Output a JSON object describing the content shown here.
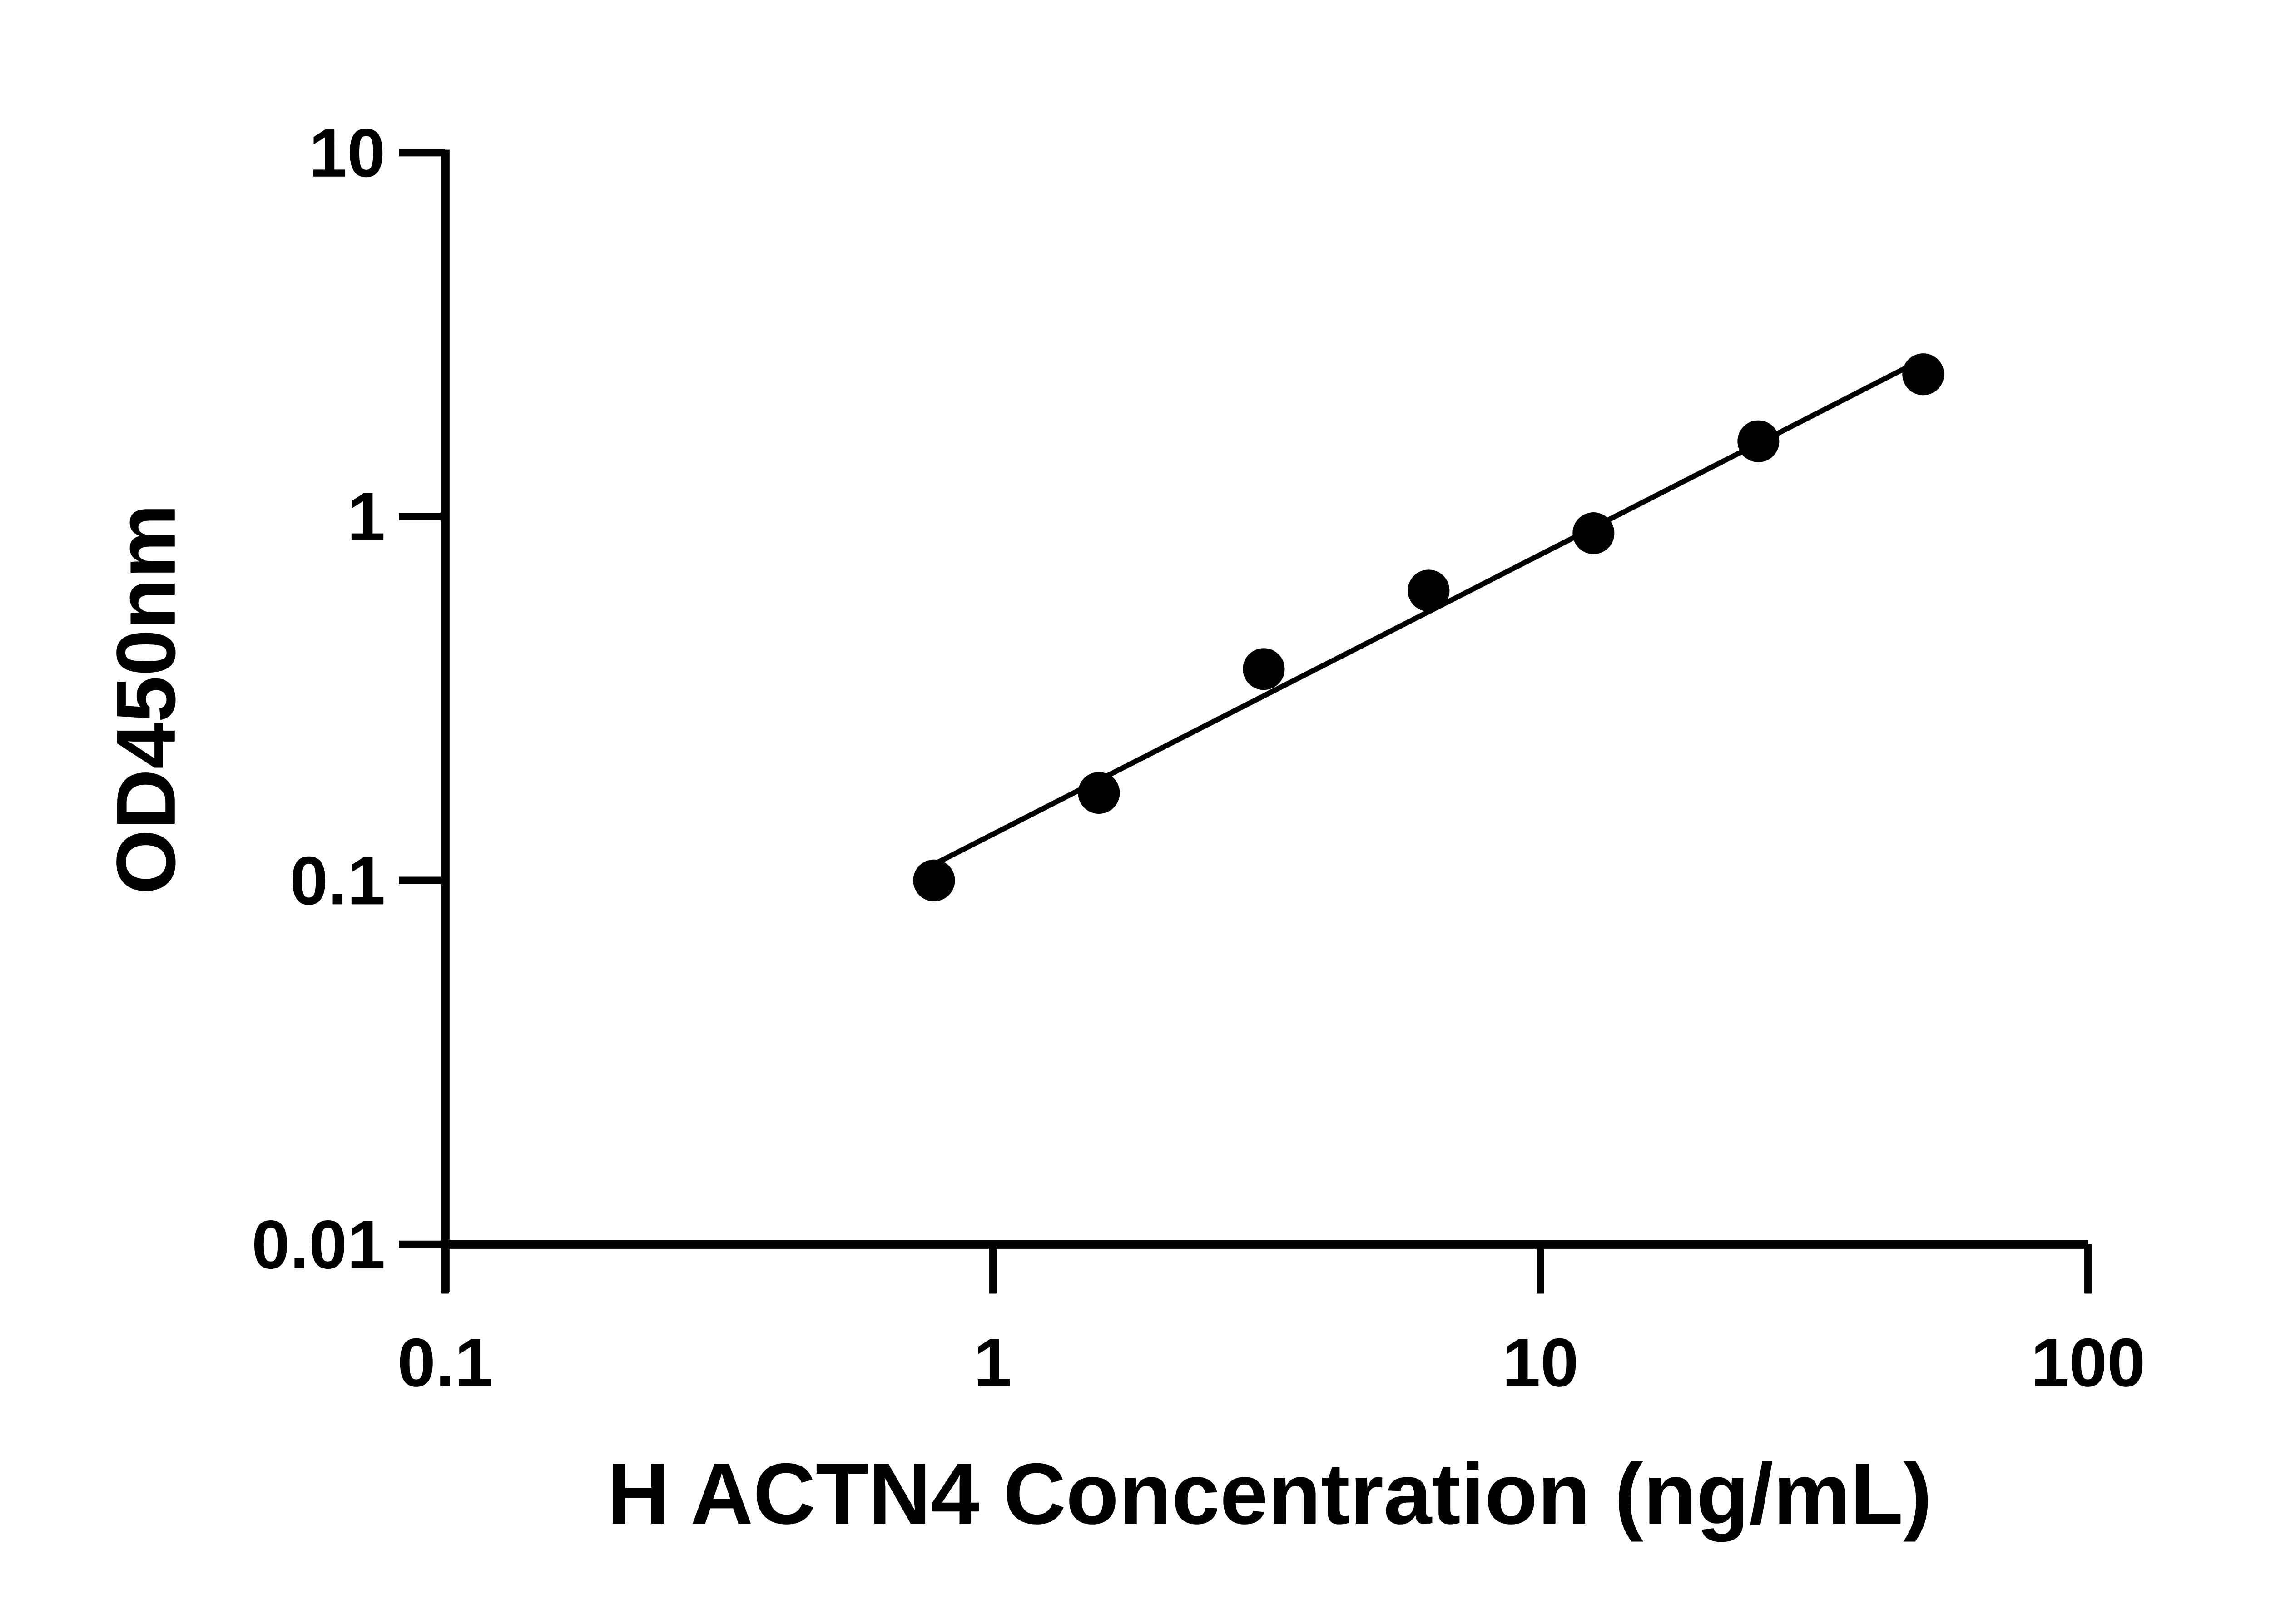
{
  "chart_data": {
    "type": "scatter",
    "title": "",
    "xlabel": "H ACTN4 Concentration (ng/mL)",
    "ylabel": "OD450nm",
    "x_scale": "log",
    "y_scale": "log",
    "xlim": [
      0.1,
      100
    ],
    "ylim": [
      0.01,
      10
    ],
    "x_ticks": [
      "0.1",
      "1",
      "10",
      "100"
    ],
    "y_ticks": [
      "0.01",
      "0.1",
      "1",
      "10"
    ],
    "grid": false,
    "fit_line": "linear fit in log-log space",
    "series": [
      {
        "x": [
          0.78125,
          1.5625,
          3.125,
          6.25,
          12.5,
          25,
          50
        ],
        "y": [
          0.1,
          0.174,
          0.381,
          0.626,
          0.9,
          1.61,
          2.46
        ]
      }
    ],
    "colors": {
      "marker": "#000000",
      "line": "#000000",
      "axis": "#000000"
    }
  }
}
